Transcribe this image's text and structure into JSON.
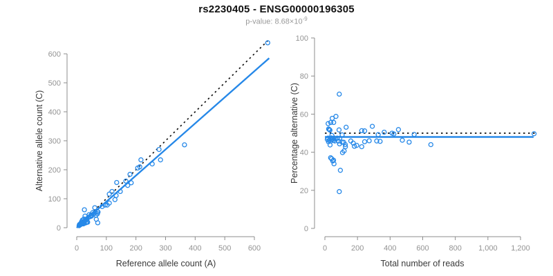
{
  "header": {
    "title": "rs2230405 - ENSG00000196305",
    "p_value": "p-value: 8.68×10",
    "p_value_exponent": "-9"
  },
  "colors": {
    "point": "#2688E8",
    "fit_line": "#2688E8",
    "reference_line": "#111111",
    "axis": "#8c8c8c",
    "tick_label": "#939393",
    "axis_title": "#383838",
    "title": "#111111",
    "subtitle": "#9a9a9a"
  },
  "chart_data": [
    {
      "type": "scatter",
      "name": "allele-counts",
      "xlabel": "Reference allele count (A)",
      "ylabel": "Alternative allele count (C)",
      "xlim": [
        0,
        660
      ],
      "ylim": [
        0,
        660
      ],
      "xticks": [
        0,
        100,
        200,
        300,
        400,
        500,
        600
      ],
      "xtick_labels": [
        "0",
        "100",
        "200",
        "300",
        "400",
        "500",
        "600"
      ],
      "yticks": [
        0,
        100,
        200,
        300,
        400,
        500,
        600
      ],
      "ytick_labels": [
        "0",
        "100",
        "200",
        "300",
        "400",
        "500",
        "600"
      ],
      "grid": false,
      "points": [
        [
          8,
          7
        ],
        [
          10,
          9
        ],
        [
          12,
          10
        ],
        [
          9,
          11
        ],
        [
          11,
          12
        ],
        [
          13,
          14
        ],
        [
          14,
          12
        ],
        [
          15,
          16
        ],
        [
          17,
          15
        ],
        [
          18,
          14
        ],
        [
          16,
          20
        ],
        [
          20,
          17
        ],
        [
          21,
          19
        ],
        [
          22,
          13
        ],
        [
          22,
          21
        ],
        [
          19,
          26
        ],
        [
          25,
          22
        ],
        [
          26,
          15
        ],
        [
          28,
          24
        ],
        [
          24,
          30
        ],
        [
          30,
          27
        ],
        [
          31,
          17
        ],
        [
          26,
          62
        ],
        [
          33,
          28
        ],
        [
          34,
          19
        ],
        [
          28,
          40
        ],
        [
          35,
          31
        ],
        [
          37,
          19
        ],
        [
          40,
          36
        ],
        [
          42,
          45
        ],
        [
          45,
          38
        ],
        [
          48,
          43
        ],
        [
          50,
          40
        ],
        [
          54,
          52
        ],
        [
          58,
          48
        ],
        [
          61,
          69
        ],
        [
          63,
          52
        ],
        [
          65,
          43
        ],
        [
          66,
          29
        ],
        [
          70,
          48
        ],
        [
          70,
          55
        ],
        [
          71,
          17
        ],
        [
          72,
          54
        ],
        [
          86,
          73
        ],
        [
          96,
          78
        ],
        [
          103,
          78
        ],
        [
          110,
          85
        ],
        [
          110,
          116
        ],
        [
          119,
          125
        ],
        [
          129,
          97
        ],
        [
          133,
          111
        ],
        [
          135,
          156
        ],
        [
          147,
          125
        ],
        [
          166,
          161
        ],
        [
          172,
          146
        ],
        [
          180,
          184
        ],
        [
          184,
          155
        ],
        [
          206,
          206
        ],
        [
          213,
          210
        ],
        [
          217,
          234
        ],
        [
          255,
          220
        ],
        [
          283,
          234
        ],
        [
          278,
          270
        ],
        [
          364,
          286
        ],
        [
          645,
          638
        ]
      ],
      "lines": [
        {
          "name": "identity-line",
          "style": "dotted",
          "color": "#111111",
          "points": [
            [
              0,
              0
            ],
            [
              648,
              648
            ]
          ]
        },
        {
          "name": "fit-line",
          "style": "solid",
          "color": "#2688E8",
          "points": [
            [
              0,
              0
            ],
            [
              650,
              585
            ]
          ]
        }
      ]
    },
    {
      "type": "scatter",
      "name": "percentage-vs-reads",
      "xlabel": "Total number of reads",
      "ylabel": "Percentage alternative (C)",
      "xlim": [
        0,
        1290
      ],
      "ylim": [
        0,
        100
      ],
      "xticks": [
        0,
        200,
        400,
        600,
        800,
        1000,
        1200
      ],
      "xtick_labels": [
        "0",
        "200",
        "400",
        "600",
        "800",
        "1,000",
        "1,200"
      ],
      "yticks": [
        0,
        20,
        40,
        60,
        80,
        100
      ],
      "ytick_labels": [
        "0",
        "20",
        "40",
        "60",
        "80",
        "100"
      ],
      "grid": false,
      "points": [
        [
          15,
          46.7
        ],
        [
          19,
          47.4
        ],
        [
          22,
          45.5
        ],
        [
          20,
          55.0
        ],
        [
          23,
          52.2
        ],
        [
          27,
          51.9
        ],
        [
          26,
          46.2
        ],
        [
          31,
          51.6
        ],
        [
          32,
          46.9
        ],
        [
          32,
          43.8
        ],
        [
          36,
          55.6
        ],
        [
          37,
          45.9
        ],
        [
          40,
          47.5
        ],
        [
          35,
          37.1
        ],
        [
          43,
          48.8
        ],
        [
          45,
          57.8
        ],
        [
          47,
          46.8
        ],
        [
          41,
          36.6
        ],
        [
          52,
          46.2
        ],
        [
          54,
          55.6
        ],
        [
          57,
          47.4
        ],
        [
          48,
          35.4
        ],
        [
          88,
          70.5
        ],
        [
          61,
          45.9
        ],
        [
          53,
          35.8
        ],
        [
          68,
          58.8
        ],
        [
          66,
          47.0
        ],
        [
          56,
          33.9
        ],
        [
          76,
          47.4
        ],
        [
          87,
          51.7
        ],
        [
          83,
          45.8
        ],
        [
          91,
          47.3
        ],
        [
          90,
          44.4
        ],
        [
          106,
          49.1
        ],
        [
          106,
          45.3
        ],
        [
          130,
          53.1
        ],
        [
          115,
          45.2
        ],
        [
          108,
          39.8
        ],
        [
          95,
          30.5
        ],
        [
          118,
          40.7
        ],
        [
          125,
          44.0
        ],
        [
          88,
          19.3
        ],
        [
          126,
          42.9
        ],
        [
          159,
          45.9
        ],
        [
          174,
          44.8
        ],
        [
          181,
          43.1
        ],
        [
          195,
          43.6
        ],
        [
          226,
          51.3
        ],
        [
          244,
          51.2
        ],
        [
          226,
          42.9
        ],
        [
          244,
          45.5
        ],
        [
          291,
          53.6
        ],
        [
          272,
          46.0
        ],
        [
          327,
          49.2
        ],
        [
          318,
          45.9
        ],
        [
          364,
          50.5
        ],
        [
          339,
          45.7
        ],
        [
          412,
          50.0
        ],
        [
          423,
          49.6
        ],
        [
          451,
          51.9
        ],
        [
          475,
          46.3
        ],
        [
          517,
          45.3
        ],
        [
          548,
          49.3
        ],
        [
          650,
          44.0
        ],
        [
          1283,
          49.7
        ]
      ],
      "lines": [
        {
          "name": "expected-50-line",
          "style": "dotted",
          "color": "#111111",
          "points": [
            [
              0,
              50
            ],
            [
              1290,
              50
            ]
          ]
        },
        {
          "name": "fit-line",
          "style": "solid",
          "color": "#2688E8",
          "points": [
            [
              0,
              48
            ],
            [
              1280,
              48
            ]
          ]
        }
      ]
    }
  ]
}
